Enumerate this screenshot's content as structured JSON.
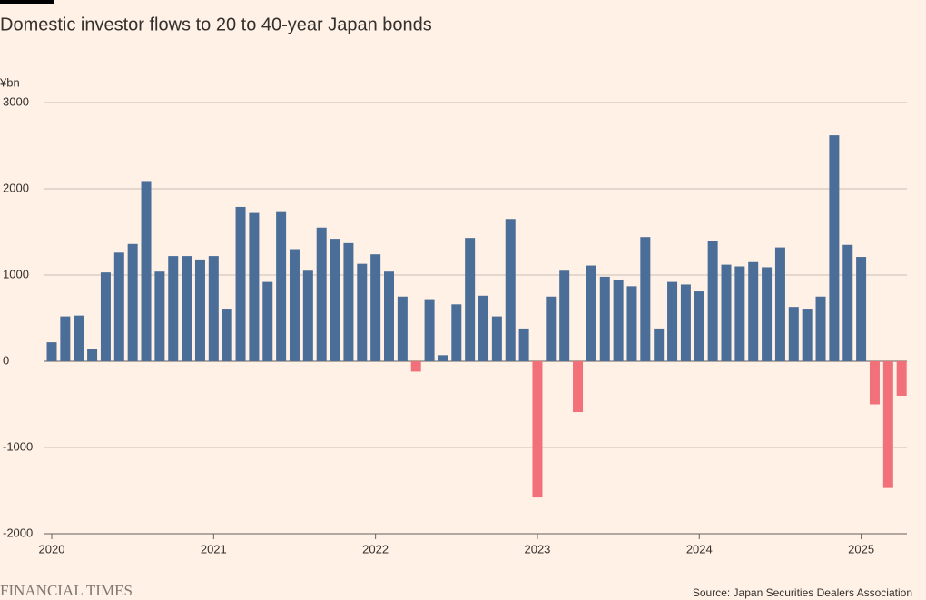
{
  "chart_data": {
    "type": "bar",
    "title": "Domestic investor flows to 20 to 40-year Japan bonds",
    "y_label": "¥bn",
    "source": "Source: Japan Securities Dealers Association",
    "brand": "FINANCIAL TIMES",
    "categories": [
      "2020",
      null,
      null,
      null,
      null,
      null,
      null,
      null,
      null,
      null,
      null,
      null,
      "2021",
      null,
      null,
      null,
      null,
      null,
      null,
      null,
      null,
      null,
      null,
      null,
      "2022",
      null,
      null,
      null,
      null,
      null,
      null,
      null,
      null,
      null,
      null,
      null,
      "2023",
      null,
      null,
      null,
      null,
      null,
      null,
      null,
      null,
      null,
      null,
      null,
      "2024",
      null,
      null,
      null,
      null,
      null,
      null,
      null,
      null,
      null,
      null,
      null,
      "2025",
      null,
      null,
      null
    ],
    "values": [
      220,
      520,
      530,
      140,
      1030,
      1260,
      1360,
      2090,
      1040,
      1220,
      1220,
      1180,
      1220,
      610,
      1790,
      1720,
      920,
      1730,
      1300,
      1050,
      1550,
      1420,
      1370,
      1130,
      1240,
      1040,
      750,
      -120,
      720,
      70,
      660,
      1430,
      760,
      520,
      1650,
      380,
      -1580,
      750,
      1050,
      -590,
      1110,
      980,
      940,
      870,
      1440,
      380,
      920,
      890,
      810,
      1390,
      1120,
      1100,
      1150,
      1090,
      1320,
      630,
      610,
      750,
      2620,
      1350,
      1210,
      -500,
      -1470,
      -400
    ],
    "color": "#4a6e98",
    "negative_color": "#f2707a",
    "ylim": [
      -2000,
      3000
    ],
    "yticks": [
      -2000,
      -1000,
      0,
      1000,
      2000,
      3000
    ],
    "grid": true
  }
}
